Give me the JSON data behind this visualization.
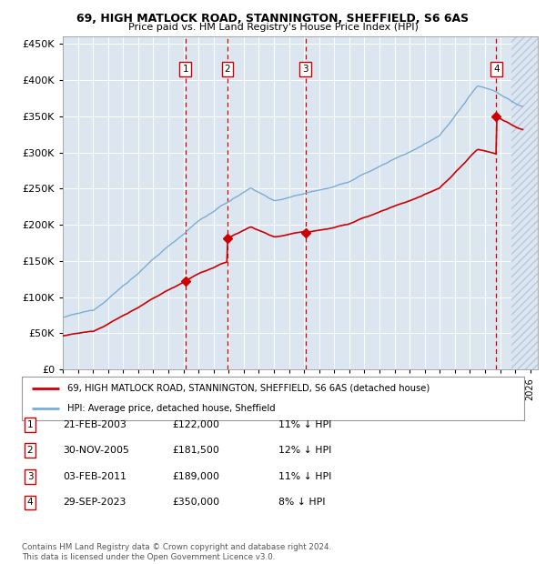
{
  "title": "69, HIGH MATLOCK ROAD, STANNINGTON, SHEFFIELD, S6 6AS",
  "subtitle": "Price paid vs. HM Land Registry's House Price Index (HPI)",
  "ylim": [
    0,
    460000
  ],
  "yticks": [
    0,
    50000,
    100000,
    150000,
    200000,
    250000,
    300000,
    350000,
    400000,
    450000
  ],
  "xlim_start": 1995.0,
  "xlim_end": 2026.5,
  "hatch_start": 2024.75,
  "background_color": "#ffffff",
  "plot_bg_color": "#dce6f1",
  "grid_color": "#ffffff",
  "hatch_color": "#b8c8dc",
  "purchases": [
    {
      "num": 1,
      "date": "21-FEB-2003",
      "year": 2003.13,
      "price": 122000,
      "pct": "11%"
    },
    {
      "num": 2,
      "date": "30-NOV-2005",
      "year": 2005.92,
      "price": 181500,
      "pct": "12%"
    },
    {
      "num": 3,
      "date": "03-FEB-2011",
      "year": 2011.09,
      "price": 189000,
      "pct": "11%"
    },
    {
      "num": 4,
      "date": "29-SEP-2023",
      "year": 2023.75,
      "price": 350000,
      "pct": "8%"
    }
  ],
  "legend_line1": "69, HIGH MATLOCK ROAD, STANNINGTON, SHEFFIELD, S6 6AS (detached house)",
  "legend_line2": "HPI: Average price, detached house, Sheffield",
  "footer1": "Contains HM Land Registry data © Crown copyright and database right 2024.",
  "footer2": "This data is licensed under the Open Government Licence v3.0.",
  "red_line_color": "#cc0000",
  "blue_line_color": "#7aadd4",
  "dashed_line_color": "#cc0000"
}
